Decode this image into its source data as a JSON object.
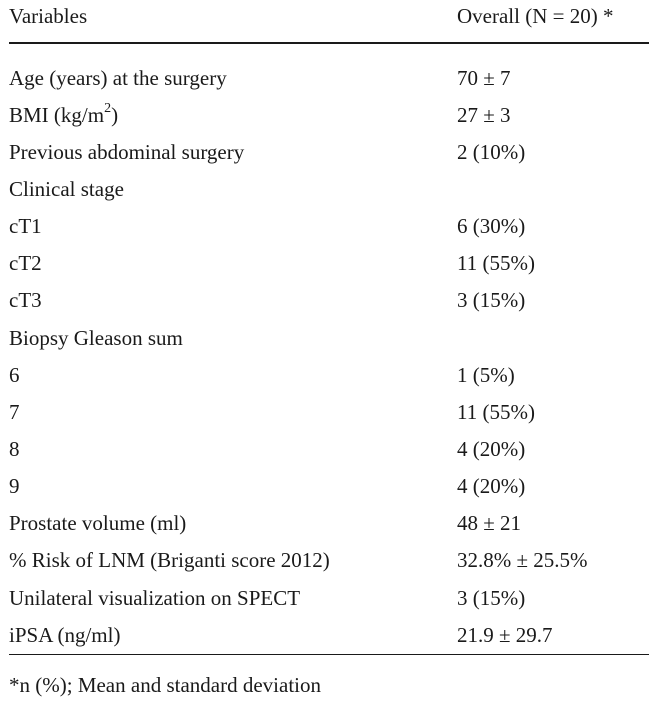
{
  "table": {
    "header": {
      "variables": "Variables",
      "overall": "Overall (N = 20) *"
    },
    "rows": [
      {
        "variable": "Age (years) at the surgery",
        "value": "70 ± 7"
      },
      {
        "variable_pre": "BMI (kg/m",
        "variable_sup": "2",
        "variable_post": ")",
        "value": "27 ± 3"
      },
      {
        "variable": "Previous abdominal surgery",
        "value": "2 (10%)"
      },
      {
        "variable": "Clinical stage",
        "value": ""
      },
      {
        "variable": "cT1",
        "value": "6 (30%)"
      },
      {
        "variable": "cT2",
        "value": "11 (55%)"
      },
      {
        "variable": "cT3",
        "value": "3 (15%)"
      },
      {
        "variable": "Biopsy Gleason sum",
        "value": ""
      },
      {
        "variable": "6",
        "value": "1 (5%)"
      },
      {
        "variable": "7",
        "value": "11 (55%)"
      },
      {
        "variable": "8",
        "value": "4 (20%)"
      },
      {
        "variable": "9",
        "value": "4 (20%)"
      },
      {
        "variable": "Prostate volume (ml)",
        "value": "48 ± 21"
      },
      {
        "variable": "% Risk of LNM (Briganti score 2012)",
        "value": "32.8% ± 25.5%"
      },
      {
        "variable": "Unilateral visualization on SPECT",
        "value": "3 (15%)"
      },
      {
        "variable": "iPSA (ng/ml)",
        "value": "21.9 ± 29.7"
      }
    ]
  },
  "footnote": "*n (%); Mean and standard deviation"
}
